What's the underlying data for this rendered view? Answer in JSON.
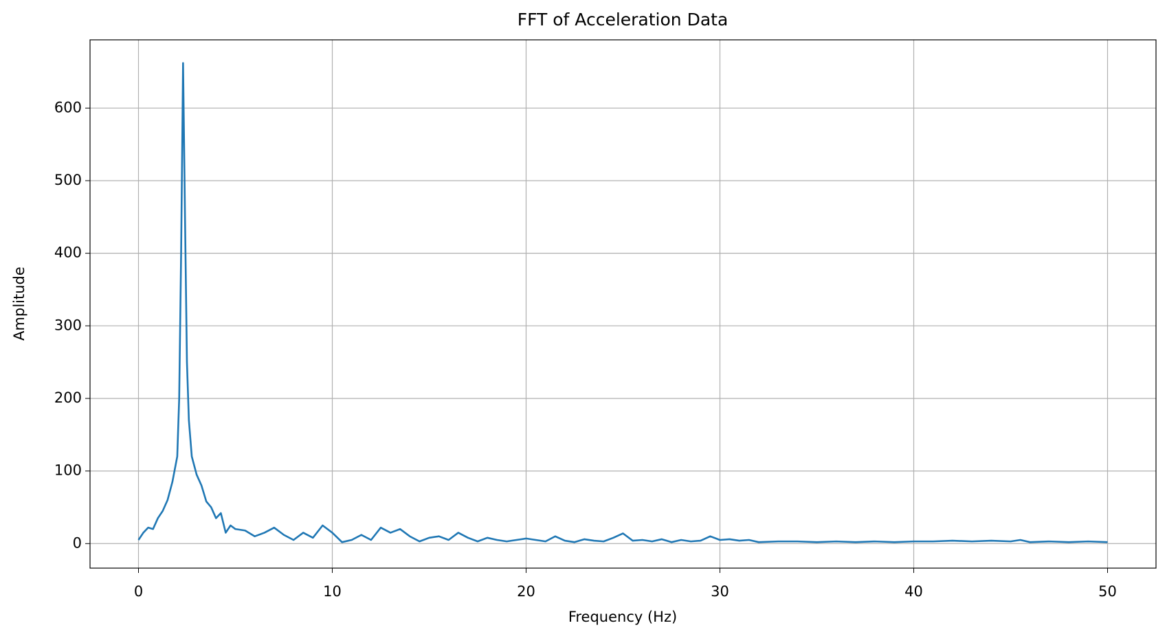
{
  "chart_data": {
    "type": "line",
    "title": "FFT of Acceleration Data",
    "x_label": "Frequency (Hz)",
    "y_label": "Amplitude",
    "color": "#1f77b4",
    "grid": true,
    "x": [
      0,
      0.25,
      0.5,
      0.75,
      1.0,
      1.25,
      1.5,
      1.75,
      2.0,
      2.1,
      2.2,
      2.3,
      2.4,
      2.5,
      2.6,
      2.75,
      3.0,
      3.25,
      3.5,
      3.75,
      4.0,
      4.25,
      4.5,
      4.75,
      5.0,
      5.5,
      6.0,
      6.5,
      7.0,
      7.5,
      8.0,
      8.5,
      9.0,
      9.5,
      10.0,
      10.5,
      11.0,
      11.5,
      12.0,
      12.5,
      13.0,
      13.5,
      14.0,
      14.5,
      15.0,
      15.5,
      16.0,
      16.5,
      17.0,
      17.5,
      18.0,
      18.5,
      19.0,
      19.5,
      20.0,
      20.5,
      21.0,
      21.5,
      22.0,
      22.5,
      23.0,
      23.5,
      24.0,
      24.5,
      25.0,
      25.5,
      26.0,
      26.5,
      27.0,
      27.5,
      28.0,
      28.5,
      29.0,
      29.5,
      30.0,
      30.5,
      31.0,
      31.5,
      32.0,
      33.0,
      34.0,
      35.0,
      36.0,
      37.0,
      38.0,
      39.0,
      40.0,
      41.0,
      42.0,
      43.0,
      44.0,
      45.0,
      45.5,
      46.0,
      47.0,
      48.0,
      49.0,
      50.0
    ],
    "values": [
      5,
      15,
      22,
      20,
      35,
      45,
      60,
      85,
      120,
      200,
      400,
      662,
      450,
      250,
      170,
      120,
      95,
      80,
      58,
      50,
      35,
      42,
      15,
      25,
      20,
      18,
      10,
      15,
      22,
      12,
      5,
      15,
      8,
      25,
      15,
      2,
      5,
      12,
      5,
      22,
      15,
      20,
      10,
      3,
      8,
      10,
      5,
      15,
      8,
      3,
      8,
      5,
      3,
      5,
      7,
      5,
      3,
      10,
      4,
      2,
      6,
      4,
      3,
      8,
      14,
      4,
      5,
      3,
      6,
      2,
      5,
      3,
      4,
      10,
      5,
      6,
      4,
      5,
      2,
      3,
      3,
      2,
      3,
      2,
      3,
      2,
      3,
      3,
      4,
      3,
      4,
      3,
      5,
      2,
      3,
      2,
      3,
      2
    ],
    "xlim": [
      -2.5,
      52.5
    ],
    "ylim": [
      -33.8,
      694
    ],
    "xticks": [
      0,
      10,
      20,
      30,
      40,
      50
    ],
    "yticks": [
      0,
      100,
      200,
      300,
      400,
      500,
      600
    ]
  }
}
